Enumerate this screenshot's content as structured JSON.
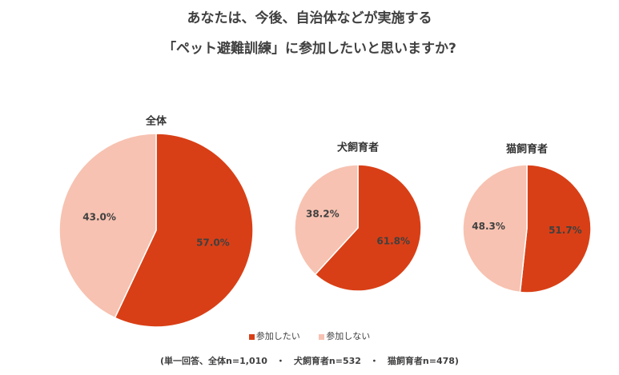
{
  "title_line1": "あなたは、今後、自治体などが実施する",
  "title_line2": "「ペット避難訓練」に参加したいと思いますか?",
  "legend": {
    "participate": "参加したい",
    "not_participate": "参加しない"
  },
  "note": "(単一回答、全体n=1,010　・　犬飼育者n=532　・　猫飼育者n=478)",
  "colors": {
    "participate": "#D93F16",
    "not_participate": "#F7C2B1"
  },
  "chart_data": {
    "type": "pie",
    "categories": [
      "参加したい",
      "参加しない"
    ],
    "charts": [
      {
        "title": "全体",
        "values": [
          57.0,
          43.0
        ],
        "labels": [
          "57.0%",
          "43.0%"
        ]
      },
      {
        "title": "犬飼育者",
        "values": [
          61.8,
          38.2
        ],
        "labels": [
          "61.8%",
          "38.2%"
        ]
      },
      {
        "title": "猫飼育者",
        "values": [
          51.7,
          48.3
        ],
        "labels": [
          "51.7%",
          "48.3%"
        ]
      }
    ]
  }
}
